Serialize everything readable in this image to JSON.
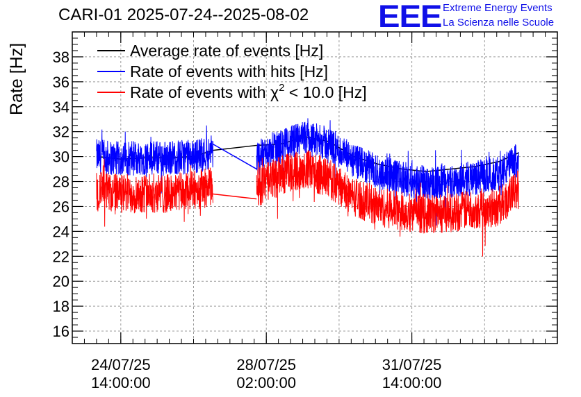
{
  "header": {
    "title": "CARI-01 2025-07-24--2025-08-02",
    "logo": "EEE",
    "org_line1": "Extreme Energy Events",
    "org_line2": "La Scienza nelle Scuole"
  },
  "chart_data": {
    "type": "line",
    "title": "CARI-01 2025-07-24--2025-08-02",
    "xlabel": "",
    "ylabel": "Rate [Hz]",
    "ylim": [
      15,
      40
    ],
    "yticks": [
      16,
      18,
      20,
      22,
      24,
      26,
      28,
      30,
      32,
      34,
      36,
      38
    ],
    "xlim_days": [
      0,
      10
    ],
    "xticks": [
      {
        "at_day": 1.0,
        "label_date": "24/07/25",
        "label_time": "14:00:00"
      },
      {
        "at_day": 4.0,
        "label_date": "28/07/25",
        "label_time": "02:00:00"
      },
      {
        "at_day": 7.0,
        "label_date": "31/07/25",
        "label_time": "14:00:00"
      }
    ],
    "grid": true,
    "legend_position": "top-left",
    "legend": [
      {
        "name": "Average rate of events [Hz]",
        "color": "#000000"
      },
      {
        "name": "Rate of events with hits [Hz]",
        "color": "#0000ff"
      },
      {
        "name": "Rate of events with χ² < 10.0 [Hz]",
        "color": "#ff0000"
      }
    ],
    "legend_chi_prefix": "Rate of events with ",
    "legend_chi_symbol": "χ",
    "legend_chi_exp": "2",
    "legend_chi_suffix": " < 10.0 [Hz]",
    "gap_days": [
      2.9,
      3.8
    ],
    "series": [
      {
        "name": "Average rate of events [Hz]",
        "color": "#000000",
        "x_days": [
          0.5,
          1.0,
          1.5,
          2.0,
          2.5,
          2.9,
          3.8,
          4.3,
          4.8,
          5.3,
          5.8,
          6.3,
          6.8,
          7.3,
          7.8,
          8.3,
          8.8,
          9.2
        ],
        "y": [
          30.0,
          29.8,
          29.9,
          29.9,
          30.0,
          30.5,
          30.9,
          31.0,
          31.6,
          31.2,
          30.0,
          29.4,
          29.0,
          28.8,
          29.0,
          29.2,
          29.6,
          30.3
        ]
      },
      {
        "name": "Rate of events with hits [Hz]",
        "color": "#0000ff",
        "spread": 1.4,
        "x_days": [
          0.5,
          1.0,
          1.5,
          2.0,
          2.5,
          2.9,
          3.8,
          4.3,
          4.8,
          5.3,
          5.8,
          6.3,
          6.8,
          7.3,
          7.8,
          8.3,
          8.8,
          9.2
        ],
        "y": [
          30.0,
          29.8,
          29.9,
          29.9,
          30.0,
          30.4,
          29.9,
          30.8,
          31.5,
          31.0,
          29.6,
          28.8,
          28.2,
          27.9,
          28.0,
          28.3,
          28.6,
          29.8
        ]
      },
      {
        "name": "Rate of events with χ² < 10.0 [Hz]",
        "color": "#ff0000",
        "spread": 1.6,
        "x_days": [
          0.5,
          1.0,
          1.5,
          2.0,
          2.5,
          2.9,
          3.8,
          4.3,
          4.8,
          5.3,
          5.8,
          6.3,
          6.8,
          7.3,
          7.8,
          8.3,
          8.8,
          9.2
        ],
        "y": [
          27.3,
          27.0,
          27.1,
          27.0,
          27.3,
          27.6,
          27.5,
          28.5,
          29.0,
          28.2,
          26.8,
          26.0,
          25.6,
          25.4,
          25.5,
          25.8,
          26.0,
          27.4
        ]
      }
    ]
  }
}
